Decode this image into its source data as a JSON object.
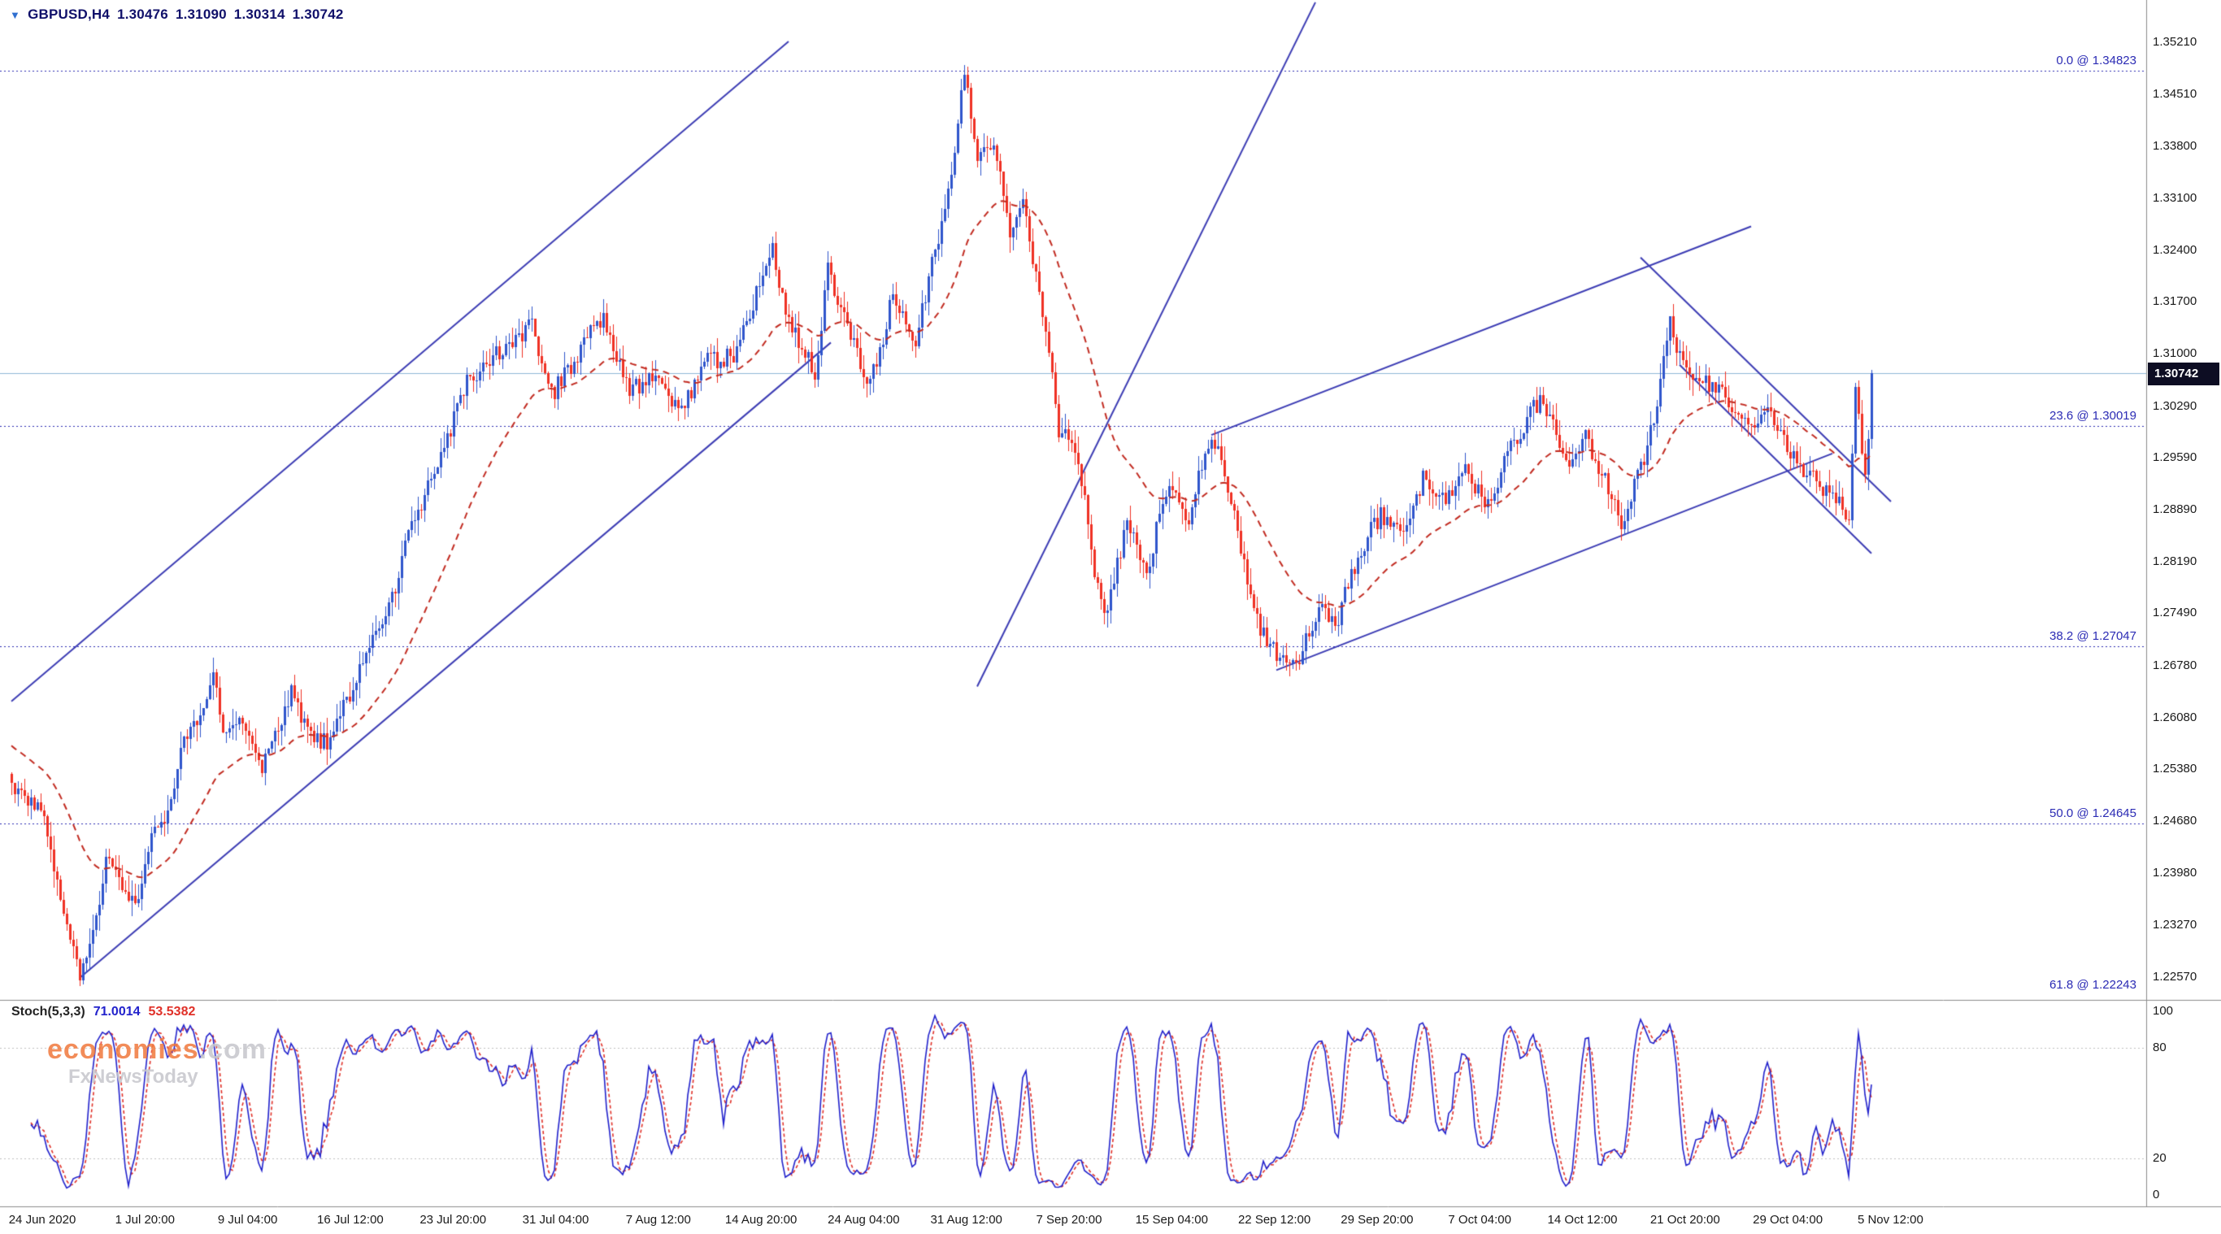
{
  "title": {
    "symbol": "GBPUSD,H4",
    "open": "1.30476",
    "high": "1.31090",
    "low": "1.30314",
    "close": "1.30742"
  },
  "watermark": {
    "brand": "economies",
    "suffix": ".com",
    "tagline": "FxNewsToday"
  },
  "colors": {
    "bull": "#2f55cc",
    "bear": "#ef3124",
    "ma": "#c22b21",
    "trend": "#3c3cb4",
    "fib": "#2b2bb4",
    "bid_line": "#8fb8d8",
    "stoch_main": "#2222cc",
    "stoch_signal": "#e03028",
    "separator": "#8c8c8c",
    "stoch_level": "#c0c0c0"
  },
  "chart_data": {
    "type": "candlestick",
    "symbol": "GBPUSD",
    "timeframe": "H4",
    "current_price": "1.30742",
    "ylim": [
      1.2257,
      1.3521
    ],
    "price_ticks": [
      "1.35210",
      "1.34510",
      "1.33800",
      "1.33100",
      "1.32400",
      "1.31700",
      "1.31000",
      "1.30290",
      "1.29590",
      "1.28890",
      "1.28190",
      "1.27490",
      "1.26780",
      "1.26080",
      "1.25380",
      "1.24680",
      "1.23980",
      "1.23270",
      "1.22570"
    ],
    "time_ticks": [
      "24 Jun 2020",
      "1 Jul 20:00",
      "9 Jul 04:00",
      "16 Jul 12:00",
      "23 Jul 20:00",
      "31 Jul 04:00",
      "7 Aug 12:00",
      "14 Aug 20:00",
      "24 Aug 04:00",
      "31 Aug 12:00",
      "7 Sep 20:00",
      "15 Sep 04:00",
      "22 Sep 12:00",
      "29 Sep 20:00",
      "7 Oct 04:00",
      "14 Oct 12:00",
      "21 Oct 20:00",
      "29 Oct 04:00",
      "5 Nov 12:00"
    ],
    "fib_levels": [
      {
        "label": "0.0 @ 1.34823",
        "price": 1.34823
      },
      {
        "label": "23.6 @ 1.30019",
        "price": 1.30019
      },
      {
        "label": "38.2 @ 1.27047",
        "price": 1.27047
      },
      {
        "label": "50.0 @ 1.24645",
        "price": 1.24645
      },
      {
        "label": "61.8 @ 1.22243",
        "price": 1.22243
      }
    ],
    "trendlines": [
      {
        "name": "rising-channel-lower",
        "from": [
          21,
          1.2256
        ],
        "to": [
          252,
          1.3115
        ]
      },
      {
        "name": "rising-channel-upper",
        "from": [
          0,
          1.263
        ],
        "to": [
          239,
          1.3522
        ]
      },
      {
        "name": "steep-trendline",
        "from": [
          297,
          1.265
        ],
        "to": [
          401,
          1.3575
        ]
      },
      {
        "name": "minor-channel-lower",
        "from": [
          389,
          1.2672
        ],
        "to": [
          560,
          1.2965
        ]
      },
      {
        "name": "minor-channel-upper",
        "from": [
          369,
          1.299
        ],
        "to": [
          535,
          1.3272
        ]
      },
      {
        "name": "falling-line-upper",
        "from": [
          501,
          1.323
        ],
        "to": [
          578,
          1.29
        ]
      },
      {
        "name": "falling-line-lower",
        "from": [
          513,
          1.3085
        ],
        "to": [
          572,
          1.283
        ]
      }
    ],
    "ma": {
      "type": "EMA",
      "period": 34,
      "style": "dashed"
    },
    "stochastic": {
      "label": "Stoch(5,3,3)",
      "k": "71.0014",
      "d": "53.5382",
      "range": [
        0,
        100
      ],
      "levels": [
        80,
        20
      ],
      "axis_ticks": [
        "100",
        "80",
        "20",
        "0"
      ]
    },
    "n_candles": 573,
    "price_path": [
      [
        0,
        1.252
      ],
      [
        10,
        1.248
      ],
      [
        14,
        1.238
      ],
      [
        21,
        1.2256
      ],
      [
        26,
        1.233
      ],
      [
        29,
        1.242
      ],
      [
        33,
        1.238
      ],
      [
        38,
        1.235
      ],
      [
        43,
        1.244
      ],
      [
        47,
        1.247
      ],
      [
        52,
        1.256
      ],
      [
        58,
        1.262
      ],
      [
        62,
        1.266
      ],
      [
        66,
        1.258
      ],
      [
        70,
        1.261
      ],
      [
        77,
        1.2535
      ],
      [
        82,
        1.26
      ],
      [
        86,
        1.264
      ],
      [
        91,
        1.259
      ],
      [
        97,
        1.2573
      ],
      [
        101,
        1.261
      ],
      [
        105,
        1.265
      ],
      [
        110,
        1.27
      ],
      [
        114,
        1.273
      ],
      [
        119,
        1.28
      ],
      [
        123,
        1.287
      ],
      [
        128,
        1.292
      ],
      [
        132,
        1.296
      ],
      [
        136,
        1.301
      ],
      [
        140,
        1.306
      ],
      [
        145,
        1.308
      ],
      [
        149,
        1.31
      ],
      [
        155,
        1.312
      ],
      [
        160,
        1.314
      ],
      [
        163,
        1.308
      ],
      [
        166,
        1.3045
      ],
      [
        170,
        1.307
      ],
      [
        173,
        1.308
      ],
      [
        177,
        1.312
      ],
      [
        182,
        1.315
      ],
      [
        186,
        1.31
      ],
      [
        190,
        1.305
      ],
      [
        194,
        1.306
      ],
      [
        197,
        1.307
      ],
      [
        201,
        1.304
      ],
      [
        205,
        1.302
      ],
      [
        210,
        1.306
      ],
      [
        214,
        1.309
      ],
      [
        219,
        1.3095
      ],
      [
        223,
        1.31
      ],
      [
        228,
        1.317
      ],
      [
        234,
        1.324
      ],
      [
        237,
        1.318
      ],
      [
        240,
        1.313
      ],
      [
        244,
        1.31
      ],
      [
        247,
        1.307
      ],
      [
        251,
        1.321
      ],
      [
        255,
        1.316
      ],
      [
        258,
        1.312
      ],
      [
        261,
        1.309
      ],
      [
        264,
        1.306
      ],
      [
        268,
        1.312
      ],
      [
        271,
        1.318
      ],
      [
        274,
        1.315
      ],
      [
        278,
        1.312
      ],
      [
        282,
        1.32
      ],
      [
        286,
        1.328
      ],
      [
        290,
        1.338
      ],
      [
        293,
        1.348
      ],
      [
        295,
        1.342
      ],
      [
        297,
        1.336
      ],
      [
        300,
        1.337
      ],
      [
        302,
        1.339
      ],
      [
        305,
        1.331
      ],
      [
        307,
        1.326
      ],
      [
        309,
        1.328
      ],
      [
        311,
        1.33
      ],
      [
        314,
        1.323
      ],
      [
        317,
        1.316
      ],
      [
        320,
        1.307
      ],
      [
        322,
        1.3
      ],
      [
        325,
        1.298
      ],
      [
        328,
        1.296
      ],
      [
        330,
        1.29
      ],
      [
        333,
        1.28
      ],
      [
        335,
        1.276
      ],
      [
        337,
        1.2745
      ],
      [
        340,
        1.282
      ],
      [
        343,
        1.287
      ],
      [
        346,
        1.284
      ],
      [
        349,
        1.28
      ],
      [
        352,
        1.286
      ],
      [
        356,
        1.293
      ],
      [
        359,
        1.29
      ],
      [
        362,
        1.288
      ],
      [
        365,
        1.293
      ],
      [
        369,
        1.299
      ],
      [
        372,
        1.295
      ],
      [
        375,
        1.29
      ],
      [
        378,
        1.283
      ],
      [
        382,
        1.275
      ],
      [
        385,
        1.272
      ],
      [
        389,
        1.269
      ],
      [
        392,
        1.268
      ],
      [
        395,
        1.2675
      ],
      [
        398,
        1.271
      ],
      [
        402,
        1.275
      ],
      [
        405,
        1.2745
      ],
      [
        408,
        1.274
      ],
      [
        411,
        1.279
      ],
      [
        415,
        1.283
      ],
      [
        418,
        1.286
      ],
      [
        421,
        1.288
      ],
      [
        424,
        1.287
      ],
      [
        428,
        1.286
      ],
      [
        431,
        1.29
      ],
      [
        434,
        1.293
      ],
      [
        437,
        1.291
      ],
      [
        441,
        1.29
      ],
      [
        444,
        1.292
      ],
      [
        447,
        1.294
      ],
      [
        450,
        1.292
      ],
      [
        454,
        1.29
      ],
      [
        457,
        1.293
      ],
      [
        460,
        1.296
      ],
      [
        463,
        1.299
      ],
      [
        467,
        1.302
      ],
      [
        471,
        1.304
      ],
      [
        474,
        1.3
      ],
      [
        478,
        1.295
      ],
      [
        481,
        1.297
      ],
      [
        484,
        1.299
      ],
      [
        487,
        1.295
      ],
      [
        491,
        1.292
      ],
      [
        495,
        1.287
      ],
      [
        498,
        1.291
      ],
      [
        502,
        1.296
      ],
      [
        505,
        1.301
      ],
      [
        507,
        1.306
      ],
      [
        510,
        1.315
      ],
      [
        512,
        1.311
      ],
      [
        515,
        1.308
      ],
      [
        518,
        1.307
      ],
      [
        521,
        1.306
      ],
      [
        524,
        1.305
      ],
      [
        528,
        1.304
      ],
      [
        531,
        1.302
      ],
      [
        534,
        1.3
      ],
      [
        537,
        1.301
      ],
      [
        541,
        1.302
      ],
      [
        544,
        1.299
      ],
      [
        548,
        1.296
      ],
      [
        551,
        1.294
      ],
      [
        554,
        1.293
      ],
      [
        558,
        1.291
      ],
      [
        561,
        1.29
      ],
      [
        565,
        1.288
      ],
      [
        567,
        1.306
      ],
      [
        569,
        1.296
      ],
      [
        570,
        1.294
      ],
      [
        571,
        1.299
      ],
      [
        572,
        1.3074
      ]
    ]
  }
}
